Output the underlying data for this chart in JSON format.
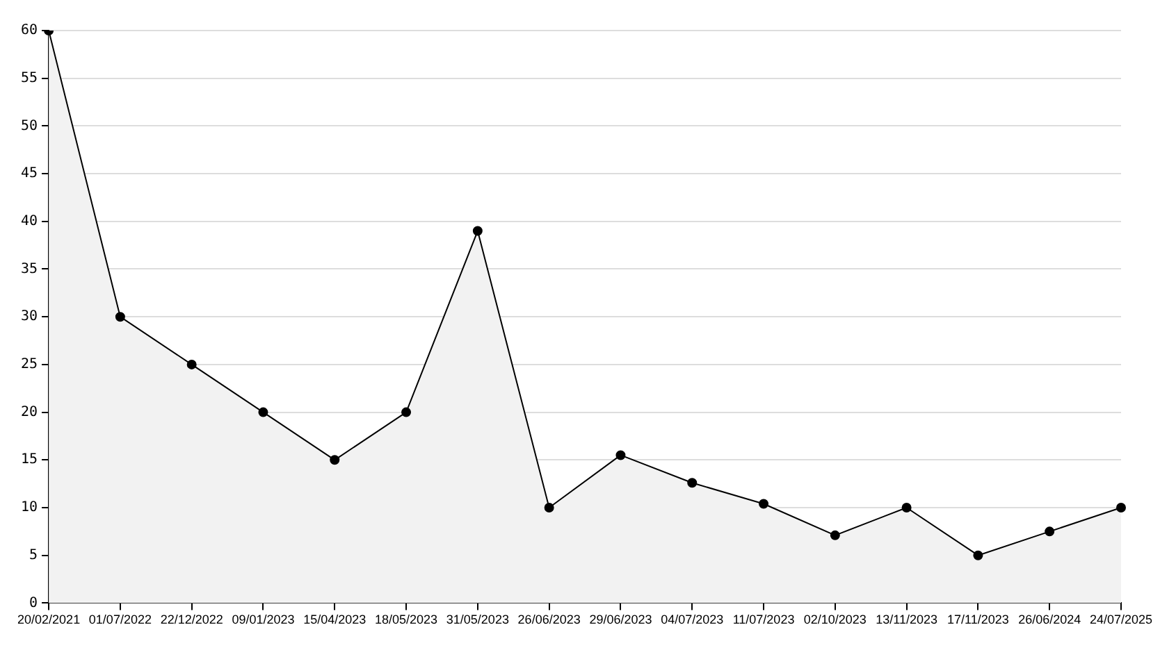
{
  "chart_data": {
    "type": "area",
    "categories": [
      "20/02/2021",
      "01/07/2022",
      "22/12/2022",
      "09/01/2023",
      "15/04/2023",
      "18/05/2023",
      "31/05/2023",
      "26/06/2023",
      "29/06/2023",
      "04/07/2023",
      "11/07/2023",
      "02/10/2023",
      "13/11/2023",
      "17/11/2023",
      "26/06/2024",
      "24/07/2025"
    ],
    "series": [
      {
        "color": "#000000",
        "values": [
          60,
          30,
          25,
          20,
          15,
          20,
          39,
          10,
          15.5,
          12.6,
          10.4,
          7.1,
          10,
          5,
          7.5,
          10
        ]
      }
    ],
    "ylim": [
      0,
      60
    ],
    "yticks": [
      0,
      5,
      10,
      15,
      20,
      25,
      30,
      35,
      40,
      45,
      50,
      55,
      60
    ],
    "grid": "y",
    "marker": "circle",
    "legend": false
  }
}
